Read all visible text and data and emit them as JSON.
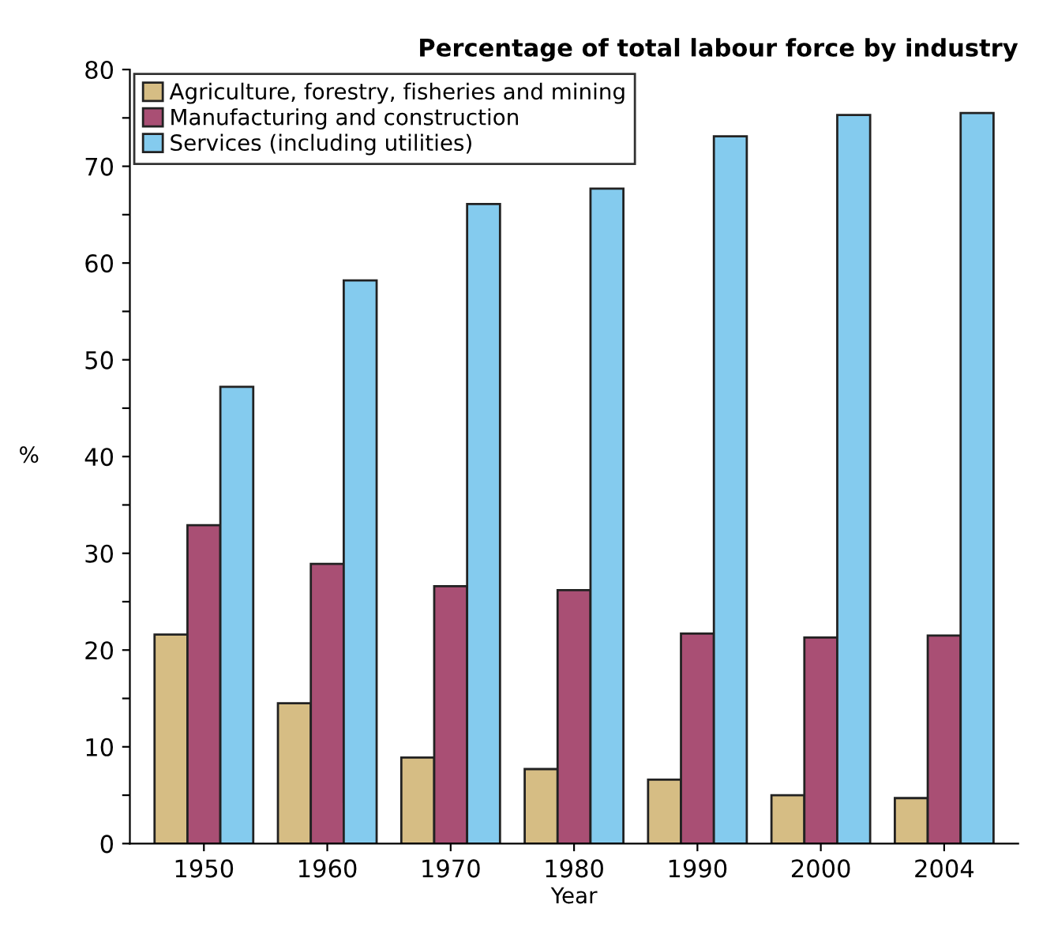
{
  "chart_data": {
    "type": "bar",
    "title": "Percentage of total labour force by industry",
    "xlabel": "Year",
    "ylabel": "%",
    "categories": [
      "1950",
      "1960",
      "1970",
      "1980",
      "1990",
      "2000",
      "2004"
    ],
    "series": [
      {
        "name": "Agriculture, forestry, fisheries and mining",
        "color": "#d6bd84",
        "values": [
          21.6,
          14.5,
          8.9,
          7.7,
          6.6,
          5.0,
          4.7
        ]
      },
      {
        "name": "Manufacturing and construction",
        "color": "#a94f74",
        "values": [
          32.9,
          28.9,
          26.6,
          26.2,
          21.7,
          21.3,
          21.5
        ]
      },
      {
        "name": "Services (including utilities)",
        "color": "#84cbee",
        "values": [
          47.2,
          58.2,
          66.1,
          67.7,
          73.1,
          75.3,
          75.5
        ]
      }
    ],
    "ylim": [
      0,
      80
    ],
    "yticks": [
      0,
      {
        "value": 5,
        "label": null
      },
      10,
      {
        "value": 15,
        "label": null
      },
      20,
      {
        "value": 25,
        "label": null
      },
      30,
      {
        "value": 35,
        "label": null
      },
      40,
      {
        "value": 45,
        "label": null
      },
      50,
      {
        "value": 55,
        "label": null
      },
      60,
      {
        "value": 65,
        "label": null
      },
      70,
      {
        "value": 75,
        "label": null
      },
      80
    ],
    "grid": false,
    "legend": "top left"
  }
}
